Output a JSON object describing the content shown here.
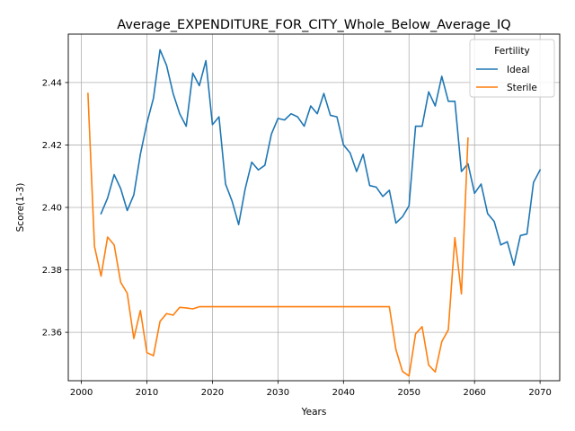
{
  "chart_data": {
    "type": "line",
    "title": "Average_EXPENDITURE_FOR_CITY_Whole_Below_Average_IQ",
    "xlabel": "Years",
    "ylabel": "Score(1-3)",
    "xlim": [
      1998,
      2073
    ],
    "ylim": [
      2.3445,
      2.4555
    ],
    "xticks": [
      2000,
      2010,
      2020,
      2030,
      2040,
      2050,
      2060,
      2070
    ],
    "yticks": [
      2.36,
      2.38,
      2.4,
      2.42,
      2.44
    ],
    "ytick_labels": [
      "2.36",
      "2.38",
      "2.40",
      "2.42",
      "2.44"
    ],
    "grid": true,
    "legend": {
      "title": "Fertility",
      "placement": "top-right"
    },
    "series": [
      {
        "name": "Ideal",
        "color": "#1f77b4",
        "x": [
          2003,
          2004,
          2005,
          2006,
          2007,
          2008,
          2009,
          2010,
          2011,
          2012,
          2013,
          2014,
          2015,
          2016,
          2017,
          2018,
          2019,
          2020,
          2021,
          2022,
          2023,
          2024,
          2025,
          2026,
          2027,
          2028,
          2029,
          2030,
          2031,
          2032,
          2033,
          2034,
          2035,
          2036,
          2037,
          2038,
          2039,
          2040,
          2041,
          2042,
          2043,
          2044,
          2045,
          2046,
          2047,
          2048,
          2049,
          2050,
          2051,
          2052,
          2053,
          2054,
          2055,
          2056,
          2057,
          2058,
          2059,
          2060,
          2061,
          2062,
          2063,
          2064,
          2065,
          2066,
          2067,
          2068,
          2069,
          2070
        ],
        "y": [
          2.398,
          2.403,
          2.4105,
          2.406,
          2.399,
          2.404,
          2.417,
          2.427,
          2.435,
          2.4505,
          2.4455,
          2.4365,
          2.43,
          2.426,
          2.443,
          2.439,
          2.447,
          2.4265,
          2.429,
          2.4075,
          2.402,
          2.3945,
          2.406,
          2.4145,
          2.412,
          2.4135,
          2.4235,
          2.4285,
          2.428,
          2.43,
          2.429,
          2.426,
          2.4325,
          2.43,
          2.4365,
          2.4295,
          2.429,
          2.42,
          2.4175,
          2.4115,
          2.417,
          2.407,
          2.4065,
          2.4035,
          2.4055,
          2.395,
          2.397,
          2.4005,
          2.426,
          2.426,
          2.437,
          2.4325,
          2.442,
          2.434,
          2.434,
          2.4115,
          2.414,
          2.4045,
          2.4075,
          2.398,
          2.3955,
          2.388,
          2.389,
          2.3815,
          2.391,
          2.3915,
          2.408,
          2.412
        ]
      },
      {
        "name": "Sterile",
        "color": "#ff7f0e",
        "x": [
          2001,
          2002,
          2003,
          2004,
          2005,
          2006,
          2007,
          2008,
          2009,
          2010,
          2011,
          2012,
          2013,
          2014,
          2015,
          2016,
          2017,
          2018,
          2019,
          2020,
          2021,
          2022,
          2023,
          2024,
          2025,
          2026,
          2027,
          2028,
          2029,
          2030,
          2031,
          2032,
          2033,
          2034,
          2035,
          2036,
          2037,
          2038,
          2039,
          2040,
          2041,
          2042,
          2043,
          2044,
          2045,
          2046,
          2047,
          2048,
          2049,
          2050,
          2051,
          2052,
          2053,
          2054,
          2055,
          2056,
          2057,
          2058,
          2059
        ],
        "y": [
          2.4365,
          2.3875,
          2.378,
          2.3905,
          2.388,
          2.376,
          2.3725,
          2.358,
          2.367,
          2.3535,
          2.3525,
          2.3635,
          2.366,
          2.3655,
          2.368,
          2.3678,
          2.3675,
          2.3682,
          2.3682,
          2.3682,
          2.3682,
          2.3682,
          2.3682,
          2.3682,
          2.3682,
          2.3682,
          2.3682,
          2.3682,
          2.3682,
          2.3682,
          2.3682,
          2.3682,
          2.3682,
          2.3682,
          2.3682,
          2.3682,
          2.3682,
          2.3682,
          2.3682,
          2.3682,
          2.3682,
          2.3682,
          2.3682,
          2.3682,
          2.3682,
          2.3682,
          2.3682,
          2.3545,
          2.3475,
          2.346,
          2.3595,
          2.3618,
          2.3495,
          2.3473,
          2.357,
          2.3608,
          2.3903,
          2.3723,
          2.4222
        ]
      }
    ]
  }
}
